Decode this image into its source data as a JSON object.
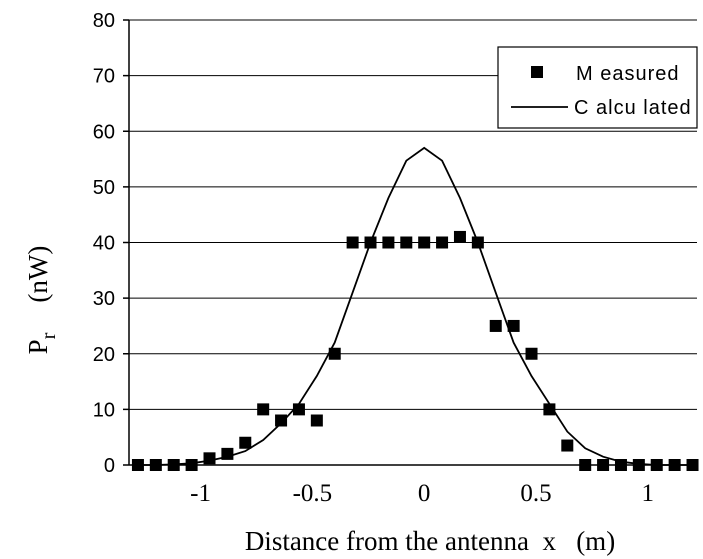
{
  "chart_data": {
    "type": "scatter",
    "xlabel": "Distance from the antenna  x   (m)",
    "ylabel_symbol": "P",
    "ylabel_subscript": "r",
    "ylabel_unit": "(nW)",
    "xlim": [
      -1.32,
      1.22
    ],
    "ylim": [
      0,
      80
    ],
    "x_ticks": [
      -1,
      -0.5,
      0,
      0.5,
      1
    ],
    "x_tick_labels": [
      "-1",
      "-0.5",
      "0",
      "0.5",
      "1"
    ],
    "y_ticks": [
      0,
      10,
      20,
      30,
      40,
      50,
      60,
      70,
      80
    ],
    "y_tick_labels": [
      "0",
      "10",
      "20",
      "30",
      "40",
      "50",
      "60",
      "70",
      "80"
    ],
    "grid": "horizontal",
    "legend_position": "top-right",
    "series": [
      {
        "name": "M easured",
        "kind": "markers",
        "marker": "square",
        "color": "#000000",
        "points": [
          [
            -1.28,
            0
          ],
          [
            -1.2,
            0
          ],
          [
            -1.12,
            0
          ],
          [
            -1.04,
            0
          ],
          [
            -0.96,
            1.2
          ],
          [
            -0.88,
            2
          ],
          [
            -0.8,
            4
          ],
          [
            -0.72,
            10
          ],
          [
            -0.64,
            8
          ],
          [
            -0.56,
            10
          ],
          [
            -0.48,
            8
          ],
          [
            -0.4,
            20
          ],
          [
            -0.32,
            40
          ],
          [
            -0.24,
            40
          ],
          [
            -0.16,
            40
          ],
          [
            -0.08,
            40
          ],
          [
            0.0,
            40
          ],
          [
            0.08,
            40
          ],
          [
            0.16,
            41
          ],
          [
            0.24,
            40
          ],
          [
            0.32,
            25
          ],
          [
            0.4,
            25
          ],
          [
            0.48,
            20
          ],
          [
            0.56,
            10
          ],
          [
            0.64,
            3.5
          ],
          [
            0.72,
            0
          ],
          [
            0.8,
            0
          ],
          [
            0.88,
            0
          ],
          [
            0.96,
            0
          ],
          [
            1.04,
            0
          ],
          [
            1.12,
            0
          ],
          [
            1.2,
            0
          ]
        ]
      },
      {
        "name": "C alcu lated",
        "kind": "line",
        "color": "#000000",
        "points": [
          [
            -1.28,
            0
          ],
          [
            -1.2,
            0
          ],
          [
            -1.12,
            0.1
          ],
          [
            -1.04,
            0.3
          ],
          [
            -0.96,
            0.8
          ],
          [
            -0.88,
            1.5
          ],
          [
            -0.8,
            2.5
          ],
          [
            -0.72,
            4.5
          ],
          [
            -0.64,
            7.5
          ],
          [
            -0.56,
            11
          ],
          [
            -0.48,
            16
          ],
          [
            -0.4,
            22
          ],
          [
            -0.32,
            31
          ],
          [
            -0.24,
            40
          ],
          [
            -0.16,
            48
          ],
          [
            -0.08,
            54.7
          ],
          [
            0.0,
            57
          ],
          [
            0.08,
            54.7
          ],
          [
            0.16,
            48
          ],
          [
            0.24,
            40
          ],
          [
            0.32,
            31
          ],
          [
            0.4,
            22
          ],
          [
            0.48,
            16
          ],
          [
            0.56,
            11
          ],
          [
            0.64,
            6
          ],
          [
            0.72,
            3
          ],
          [
            0.8,
            1.5
          ],
          [
            0.88,
            0.6
          ],
          [
            0.96,
            0.2
          ],
          [
            1.04,
            0
          ],
          [
            1.12,
            0
          ],
          [
            1.2,
            0
          ]
        ]
      }
    ]
  }
}
